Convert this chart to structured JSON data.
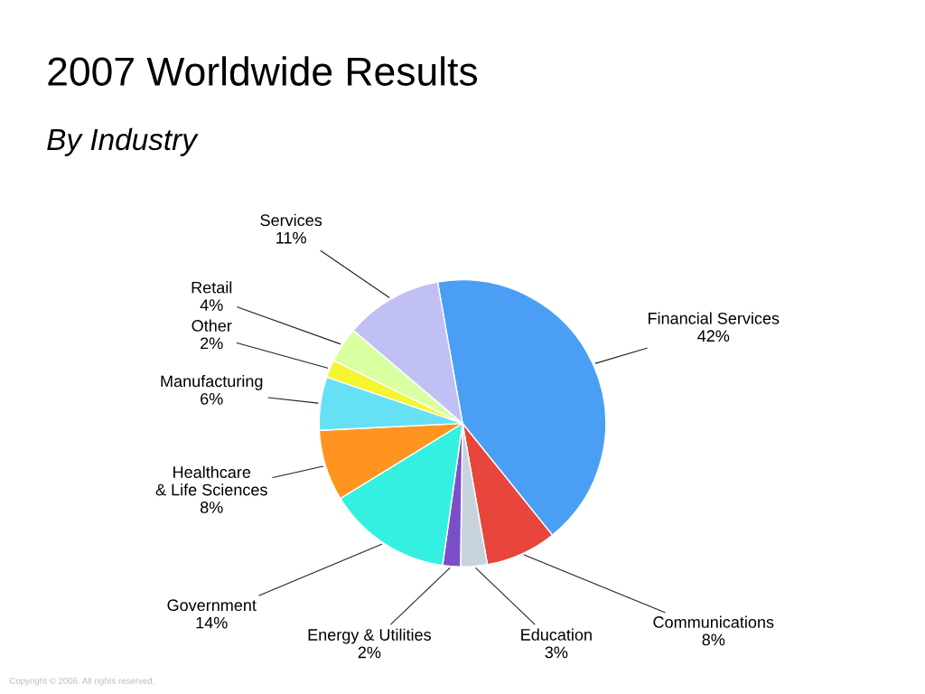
{
  "chart_data": {
    "type": "pie",
    "title": "2007 Worldwide Results",
    "subtitle": "By Industry",
    "categories": [
      "Financial Services",
      "Communications",
      "Education",
      "Energy & Utilities",
      "Government",
      "Healthcare\n& Life Sciences",
      "Manufacturing",
      "Other",
      "Retail",
      "Services"
    ],
    "values": [
      42,
      8,
      3,
      2,
      14,
      8,
      6,
      2,
      4,
      11
    ],
    "value_labels": [
      "42%",
      "8%",
      "3%",
      "2%",
      "14%",
      "8%",
      "6%",
      "2%",
      "4%",
      "11%"
    ],
    "colors": [
      "#4a9ff5",
      "#e8453c",
      "#c8d4dc",
      "#7b4fc8",
      "#33f0e0",
      "#ff9520",
      "#66e0f5",
      "#f5f530",
      "#d8ffa0",
      "#c0c0f5"
    ],
    "legend": false,
    "annotations": [
      "Copyright © 2006. All rights reserved."
    ]
  }
}
